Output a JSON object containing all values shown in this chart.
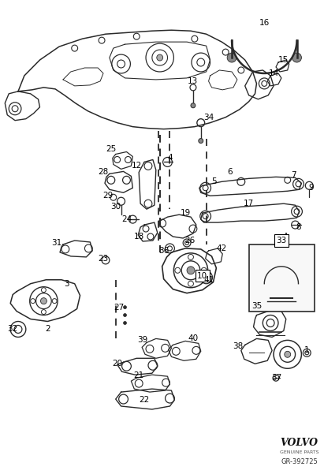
{
  "diagram_code": "GR-392725",
  "brand": "VOLVO",
  "brand_sub": "GENUINE PARTS",
  "bg_color": "#ffffff",
  "text_color": "#000000",
  "fig_width": 4.11,
  "fig_height": 6.01,
  "dpi": 100
}
